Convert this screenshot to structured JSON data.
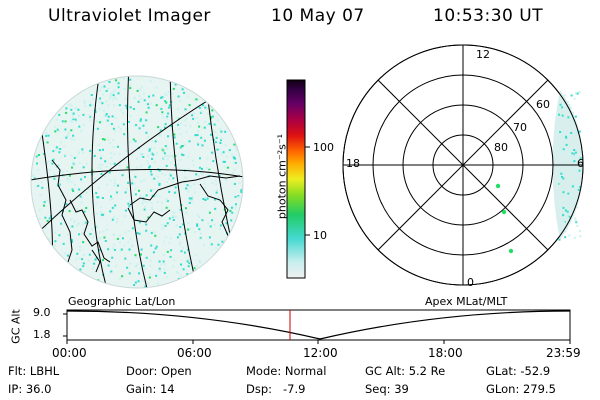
{
  "header": {
    "title": "Ultraviolet Imager",
    "date": "10 May 07",
    "time": "10:53:30 UT"
  },
  "colorbar": {
    "unit_label": "photon cm⁻²s⁻¹",
    "ticks": [
      "100",
      "10"
    ]
  },
  "polar": {
    "mlt_labels": {
      "top": "12",
      "left": "18",
      "right": "6",
      "bottom": "0"
    },
    "lat_labels": [
      "80",
      "70",
      "60"
    ]
  },
  "map_labels": {
    "left": "Geographic Lat/Lon",
    "right": "Apex MLat/MLT"
  },
  "altitude_plot": {
    "ylabel": "GC Alt",
    "yticks": [
      "9.0",
      "1.8"
    ],
    "xticks": [
      "00:00",
      "06:00",
      "12:00",
      "18:00",
      "23:59"
    ],
    "current_time_marker": "10:53:30"
  },
  "stats": {
    "filt": {
      "label": "Flt:",
      "value": "LBHL"
    },
    "ip": {
      "label": "IP:",
      "value": "36.0"
    },
    "door": {
      "label": "Door:",
      "value": "Open"
    },
    "gain": {
      "label": "Gain:",
      "value": "14"
    },
    "mode": {
      "label": "Mode:",
      "value": "Normal"
    },
    "dsp": {
      "label": "Dsp:",
      "value": "-7.9"
    },
    "gcalt": {
      "label": "GC Alt:",
      "value": "5.2 Re"
    },
    "seq": {
      "label": "Seq:",
      "value": "39"
    },
    "glat": {
      "label": "GLat:",
      "value": "-52.9"
    },
    "glon": {
      "label": "GLon:",
      "value": "279.5"
    }
  },
  "colors": {
    "aurora_low": "#ccf2ee",
    "aurora_mid": "#33ddcc",
    "aurora_high": "#22dd66",
    "marker": "#cc0000"
  }
}
